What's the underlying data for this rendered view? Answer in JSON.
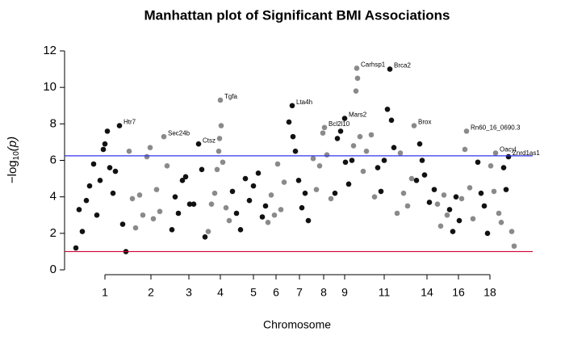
{
  "chart_data": {
    "type": "scatter",
    "title": "Manhattan plot of Significant BMI Associations",
    "x_label": "Chromosome",
    "y_label": {
      "prefix": "−log",
      "subscript": "10",
      "suffix": "(p)"
    },
    "xlim": [
      0,
      560
    ],
    "ylim": [
      0,
      12
    ],
    "yticks": [
      0,
      2,
      4,
      6,
      8,
      10,
      12
    ],
    "xticks": [
      {
        "value": 50,
        "label": "1"
      },
      {
        "value": 107,
        "label": "2"
      },
      {
        "value": 154,
        "label": "3"
      },
      {
        "value": 193,
        "label": "4"
      },
      {
        "value": 234,
        "label": "5"
      },
      {
        "value": 262,
        "label": "6"
      },
      {
        "value": 291,
        "label": "7"
      },
      {
        "value": 321,
        "label": "8"
      },
      {
        "value": 347,
        "label": "9"
      },
      {
        "value": 396,
        "label": "11"
      },
      {
        "value": 449,
        "label": "14"
      },
      {
        "value": 488,
        "label": "16"
      },
      {
        "value": 527,
        "label": "18"
      }
    ],
    "colors": [
      "#111111",
      "#8a8a8a"
    ],
    "thresholds": [
      {
        "value": 6.25,
        "color": "#3333ee"
      },
      {
        "value": 1,
        "color": "#cc0033"
      }
    ],
    "chromosomes": [
      {
        "x": [
          14,
          18,
          22,
          27,
          31,
          36,
          40,
          44,
          48,
          50,
          53,
          56,
          60,
          63,
          68,
          72,
          76
        ],
        "values": [
          1.2,
          3.3,
          2.1,
          3.8,
          4.6,
          5.8,
          3.0,
          4.9,
          6.6,
          6.9,
          7.6,
          5.6,
          4.2,
          5.4,
          7.9,
          2.5,
          1.0
        ]
      },
      {
        "x": [
          80,
          84,
          88,
          93,
          97,
          102,
          106,
          110,
          114,
          118,
          123,
          127
        ],
        "values": [
          6.5,
          3.9,
          2.3,
          4.1,
          3.0,
          6.2,
          6.7,
          2.8,
          4.4,
          3.2,
          7.3,
          5.7
        ]
      },
      {
        "x": [
          133,
          137,
          141,
          146,
          150,
          155,
          160,
          166,
          170,
          174
        ],
        "values": [
          2.2,
          4.0,
          3.1,
          4.9,
          5.1,
          3.6,
          3.6,
          6.9,
          5.5,
          1.8
        ]
      },
      {
        "x": [
          178,
          182,
          186,
          189,
          191,
          192,
          193,
          194,
          196,
          200,
          204
        ],
        "values": [
          2.1,
          3.6,
          4.2,
          5.5,
          6.5,
          7.2,
          9.3,
          7.9,
          5.9,
          3.4,
          2.7
        ]
      },
      {
        "x": [
          208,
          213,
          218,
          224,
          229,
          234,
          240,
          245,
          249
        ],
        "values": [
          4.3,
          3.1,
          2.2,
          5.0,
          3.8,
          4.6,
          5.3,
          2.9,
          3.5
        ]
      },
      {
        "x": [
          252,
          256,
          260,
          264,
          268,
          272
        ],
        "values": [
          2.6,
          4.1,
          3.0,
          5.8,
          3.3,
          4.8
        ]
      },
      {
        "x": [
          278,
          282,
          283,
          286,
          290,
          294,
          298,
          302
        ],
        "values": [
          8.1,
          9.0,
          7.3,
          6.5,
          4.9,
          3.4,
          4.2,
          2.7
        ]
      },
      {
        "x": [
          308,
          312,
          316,
          320,
          322,
          325,
          330
        ],
        "values": [
          6.1,
          4.4,
          5.7,
          7.5,
          7.8,
          6.3,
          3.9
        ]
      },
      {
        "x": [
          335,
          338,
          342,
          347,
          348,
          352,
          356
        ],
        "values": [
          4.2,
          7.2,
          7.6,
          8.3,
          5.9,
          4.7,
          6.0
        ]
      },
      {
        "x": [
          358,
          361,
          362,
          363,
          366,
          370,
          374,
          380,
          384
        ],
        "values": [
          6.8,
          9.8,
          11.05,
          10.5,
          7.3,
          5.4,
          6.5,
          7.4,
          4.0
        ]
      },
      {
        "x": [
          388,
          392,
          396,
          400,
          403,
          405,
          408
        ],
        "values": [
          5.6,
          4.3,
          6.0,
          8.8,
          11.0,
          8.2,
          6.7
        ]
      },
      {
        "x": [
          412,
          416,
          420,
          425,
          430,
          433
        ],
        "values": [
          3.1,
          6.4,
          4.2,
          3.5,
          5.0,
          7.9
        ]
      },
      {
        "x": [
          436,
          440,
          443,
          446,
          452,
          458
        ],
        "values": [
          4.9,
          6.9,
          6.0,
          5.2,
          3.7,
          4.4
        ]
      },
      {
        "x": [
          462,
          466,
          470,
          474
        ],
        "values": [
          3.6,
          2.4,
          4.1,
          3.0
        ]
      },
      {
        "x": [
          477,
          481,
          485,
          489
        ],
        "values": [
          3.3,
          2.1,
          4.0,
          2.7
        ]
      },
      {
        "x": [
          492,
          496,
          498,
          502,
          506
        ],
        "values": [
          3.9,
          6.6,
          7.6,
          4.5,
          2.8
        ]
      },
      {
        "x": [
          512,
          516,
          520,
          524
        ],
        "values": [
          5.9,
          4.2,
          3.5,
          2.0
        ]
      },
      {
        "x": [
          528,
          532,
          534,
          538,
          541
        ],
        "values": [
          5.7,
          4.3,
          6.4,
          3.1,
          2.6
        ]
      },
      {
        "x": [
          544,
          547,
          550
        ],
        "values": [
          5.6,
          4.4,
          6.2
        ]
      },
      {
        "x": [
          554,
          557
        ],
        "values": [
          2.1,
          1.3
        ]
      }
    ],
    "annotations": [
      {
        "text": "Htr7",
        "x": 68,
        "y": 7.9
      },
      {
        "text": "Sec24b",
        "x": 123,
        "y": 7.3
      },
      {
        "text": "Ctsz",
        "x": 166,
        "y": 6.9
      },
      {
        "text": "Tgfa",
        "x": 193,
        "y": 9.3
      },
      {
        "text": "Lta4h",
        "x": 282,
        "y": 9.0
      },
      {
        "text": "Bcl2l10",
        "x": 322,
        "y": 7.8
      },
      {
        "text": "Mars2",
        "x": 347,
        "y": 8.3
      },
      {
        "text": "Carhsp1",
        "x": 362,
        "y": 11.05
      },
      {
        "text": "Brca2",
        "x": 403,
        "y": 11.0
      },
      {
        "text": "Brox",
        "x": 433,
        "y": 7.9
      },
      {
        "text": "Rn60_16_0690.3",
        "x": 498,
        "y": 7.6
      },
      {
        "text": "Oacyl",
        "x": 534,
        "y": 6.4
      },
      {
        "text": "Znrd1as1",
        "x": 550,
        "y": 6.2
      }
    ]
  }
}
